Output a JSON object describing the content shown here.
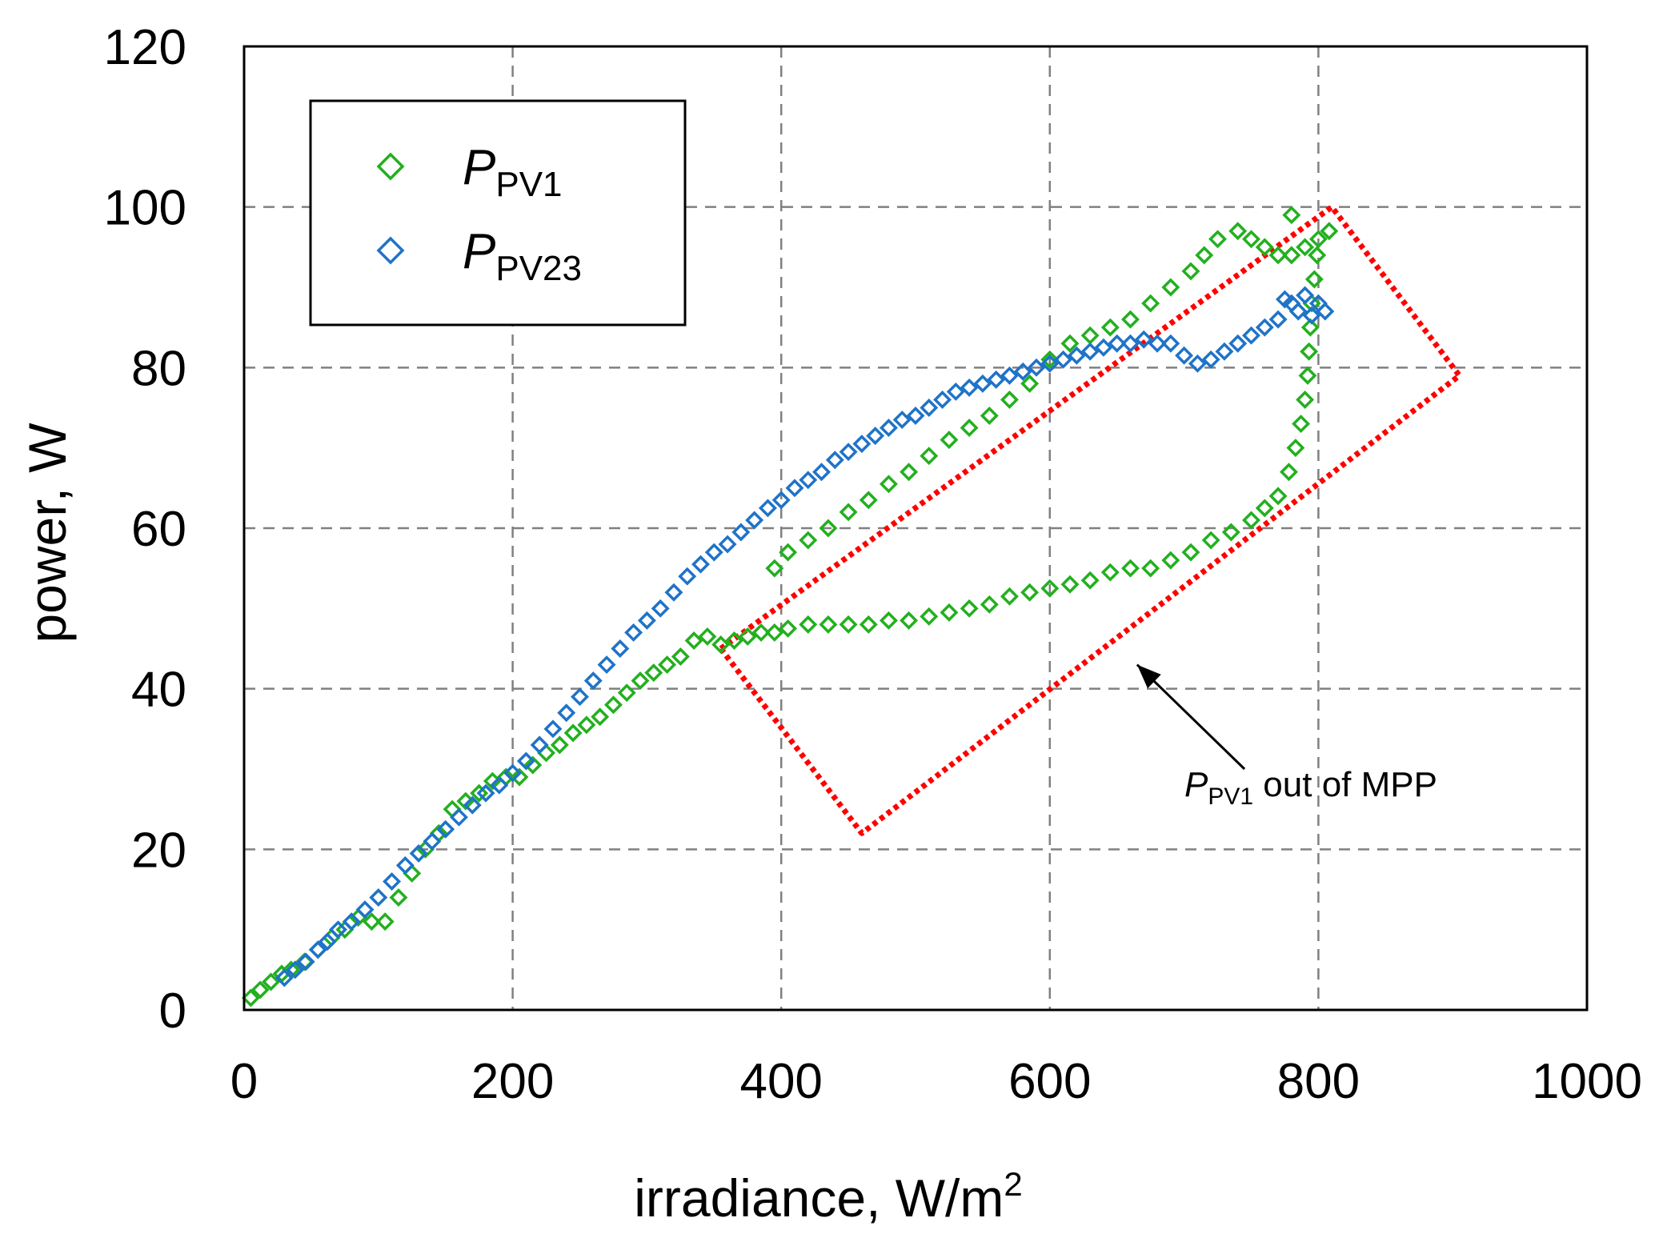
{
  "chart_data": {
    "type": "scatter",
    "title": "",
    "xlabel": "irradiance,  W/m",
    "xlabel_sup": "2",
    "ylabel": "power, W",
    "xlim": [
      0,
      1000
    ],
    "ylim": [
      0,
      120
    ],
    "x_ticks": [
      "0",
      "200",
      "400",
      "600",
      "800",
      "1000"
    ],
    "y_ticks": [
      "0",
      "20",
      "40",
      "60",
      "80",
      "100",
      "120"
    ],
    "grid": true,
    "legend_position": "top-left",
    "series": [
      {
        "name": "P_PV1",
        "label_main": "P",
        "label_sub": "PV1",
        "color": "#22b01e",
        "marker": "diamond-open",
        "points": [
          [
            5,
            1.5
          ],
          [
            12,
            2.5
          ],
          [
            20,
            3.5
          ],
          [
            28,
            4.5
          ],
          [
            35,
            5
          ],
          [
            45,
            6
          ],
          [
            55,
            7.5
          ],
          [
            65,
            9
          ],
          [
            75,
            10
          ],
          [
            85,
            11.5
          ],
          [
            95,
            11
          ],
          [
            105,
            11
          ],
          [
            115,
            14
          ],
          [
            125,
            17
          ],
          [
            135,
            20
          ],
          [
            145,
            22
          ],
          [
            155,
            25
          ],
          [
            165,
            26
          ],
          [
            175,
            27
          ],
          [
            185,
            28.5
          ],
          [
            195,
            29
          ],
          [
            205,
            29
          ],
          [
            215,
            30.5
          ],
          [
            225,
            32
          ],
          [
            235,
            33
          ],
          [
            245,
            34.5
          ],
          [
            255,
            35.5
          ],
          [
            265,
            36.5
          ],
          [
            275,
            38
          ],
          [
            285,
            39.5
          ],
          [
            295,
            41
          ],
          [
            305,
            42
          ],
          [
            315,
            43
          ],
          [
            325,
            44
          ],
          [
            335,
            46
          ],
          [
            345,
            46.5
          ],
          [
            355,
            45.5
          ],
          [
            365,
            46
          ],
          [
            375,
            46.5
          ],
          [
            385,
            47
          ],
          [
            395,
            47
          ],
          [
            405,
            47.5
          ],
          [
            420,
            48
          ],
          [
            435,
            48
          ],
          [
            450,
            48
          ],
          [
            465,
            48
          ],
          [
            480,
            48.5
          ],
          [
            495,
            48.5
          ],
          [
            510,
            49
          ],
          [
            525,
            49.5
          ],
          [
            540,
            50
          ],
          [
            555,
            50.5
          ],
          [
            570,
            51.5
          ],
          [
            585,
            52
          ],
          [
            600,
            52.5
          ],
          [
            615,
            53
          ],
          [
            630,
            53.5
          ],
          [
            645,
            54.5
          ],
          [
            660,
            55
          ],
          [
            675,
            55
          ],
          [
            690,
            56
          ],
          [
            705,
            57
          ],
          [
            720,
            58.5
          ],
          [
            735,
            59.5
          ],
          [
            750,
            61
          ],
          [
            760,
            62.5
          ],
          [
            770,
            64
          ],
          [
            778,
            67
          ],
          [
            783,
            70
          ],
          [
            787,
            73
          ],
          [
            790,
            76
          ],
          [
            792,
            79
          ],
          [
            793,
            82
          ],
          [
            794,
            85
          ],
          [
            795,
            88
          ],
          [
            797,
            91
          ],
          [
            799,
            94
          ],
          [
            800,
            96
          ],
          [
            790,
            95
          ],
          [
            780,
            94
          ],
          [
            770,
            94
          ],
          [
            760,
            95
          ],
          [
            750,
            96
          ],
          [
            740,
            97
          ],
          [
            725,
            96
          ],
          [
            715,
            94
          ],
          [
            705,
            92
          ],
          [
            690,
            90
          ],
          [
            675,
            88
          ],
          [
            660,
            86
          ],
          [
            645,
            85
          ],
          [
            630,
            84
          ],
          [
            615,
            83
          ],
          [
            600,
            81
          ],
          [
            585,
            78
          ],
          [
            570,
            76
          ],
          [
            555,
            74
          ],
          [
            540,
            72.5
          ],
          [
            525,
            71
          ],
          [
            510,
            69
          ],
          [
            495,
            67
          ],
          [
            480,
            65.5
          ],
          [
            465,
            63.5
          ],
          [
            450,
            62
          ],
          [
            435,
            60
          ],
          [
            420,
            58.5
          ],
          [
            405,
            57
          ],
          [
            395,
            55
          ],
          [
            780,
            99
          ],
          [
            808,
            97
          ]
        ]
      },
      {
        "name": "P_PV23",
        "label_main": "P",
        "label_sub": "PV23",
        "color": "#1f73c8",
        "marker": "diamond-open",
        "points": [
          [
            30,
            4
          ],
          [
            38,
            5
          ],
          [
            46,
            6
          ],
          [
            55,
            7.5
          ],
          [
            62,
            8.5
          ],
          [
            70,
            10
          ],
          [
            80,
            11
          ],
          [
            90,
            12.5
          ],
          [
            100,
            14
          ],
          [
            110,
            16
          ],
          [
            120,
            18
          ],
          [
            130,
            19.5
          ],
          [
            140,
            21
          ],
          [
            150,
            22.5
          ],
          [
            160,
            24
          ],
          [
            170,
            25.5
          ],
          [
            180,
            27
          ],
          [
            190,
            28
          ],
          [
            200,
            29.5
          ],
          [
            210,
            31
          ],
          [
            220,
            33
          ],
          [
            230,
            35
          ],
          [
            240,
            37
          ],
          [
            250,
            39
          ],
          [
            260,
            41
          ],
          [
            270,
            43
          ],
          [
            280,
            45
          ],
          [
            290,
            47
          ],
          [
            300,
            48.5
          ],
          [
            310,
            50
          ],
          [
            320,
            52
          ],
          [
            330,
            54
          ],
          [
            340,
            55.5
          ],
          [
            350,
            57
          ],
          [
            360,
            58
          ],
          [
            370,
            59.5
          ],
          [
            380,
            61
          ],
          [
            390,
            62.5
          ],
          [
            400,
            63.5
          ],
          [
            410,
            65
          ],
          [
            420,
            66
          ],
          [
            430,
            67
          ],
          [
            440,
            68.5
          ],
          [
            450,
            69.5
          ],
          [
            460,
            70.5
          ],
          [
            470,
            71.5
          ],
          [
            480,
            72.5
          ],
          [
            490,
            73.5
          ],
          [
            500,
            74
          ],
          [
            510,
            75
          ],
          [
            520,
            76
          ],
          [
            530,
            77
          ],
          [
            540,
            77.5
          ],
          [
            550,
            78
          ],
          [
            560,
            78.5
          ],
          [
            570,
            79
          ],
          [
            580,
            79.5
          ],
          [
            590,
            80
          ],
          [
            600,
            80.5
          ],
          [
            610,
            81
          ],
          [
            620,
            81.5
          ],
          [
            630,
            82
          ],
          [
            640,
            82.5
          ],
          [
            650,
            83
          ],
          [
            660,
            83
          ],
          [
            670,
            83.5
          ],
          [
            680,
            83
          ],
          [
            690,
            83
          ],
          [
            700,
            81.5
          ],
          [
            710,
            80.5
          ],
          [
            720,
            81
          ],
          [
            730,
            82
          ],
          [
            740,
            83
          ],
          [
            750,
            84
          ],
          [
            760,
            85
          ],
          [
            770,
            86
          ],
          [
            780,
            88
          ],
          [
            790,
            89
          ],
          [
            800,
            88
          ],
          [
            805,
            87
          ],
          [
            795,
            86.5
          ],
          [
            785,
            87
          ],
          [
            775,
            88.5
          ]
        ]
      }
    ],
    "annotations": [
      {
        "kind": "dotted-outline",
        "color": "#ff0000",
        "description": "region enclosing P_PV1 points away from MPP",
        "vertices_data": [
          [
            355,
            45
          ],
          [
            810,
            100
          ],
          [
            905,
            79
          ],
          [
            460,
            22
          ]
        ]
      },
      {
        "kind": "arrow-label",
        "text_main": "P",
        "text_sub": "PV1",
        "text_rest": " out  of MPP",
        "arrow_to": [
          665,
          43
        ],
        "arrow_from": [
          745,
          30
        ]
      }
    ]
  }
}
